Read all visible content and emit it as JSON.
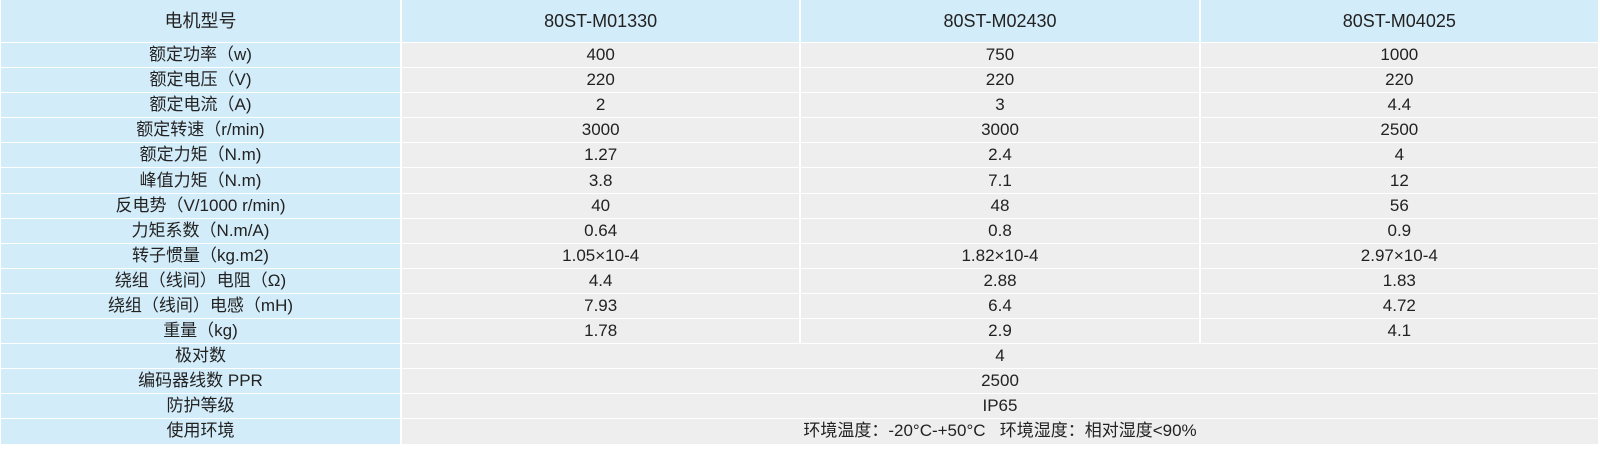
{
  "colors": {
    "label_bg": "#d3ecf9",
    "cell_bg": "#eeeeee",
    "text": "#222222"
  },
  "header": {
    "label": "电机型号",
    "models": [
      "80ST-M01330",
      "80ST-M02430",
      "80ST-M04025"
    ]
  },
  "rows": [
    {
      "label": "额定功率（w)",
      "values": [
        "400",
        "750",
        "1000"
      ]
    },
    {
      "label": "额定电压（V)",
      "values": [
        "220",
        "220",
        "220"
      ]
    },
    {
      "label": "额定电流（A)",
      "values": [
        "2",
        "3",
        "4.4"
      ]
    },
    {
      "label": "额定转速（r/min)",
      "values": [
        "3000",
        "3000",
        "2500"
      ]
    },
    {
      "label": "额定力矩（N.m)",
      "values": [
        "1.27",
        "2.4",
        "4"
      ]
    },
    {
      "label": "峰值力矩（N.m)",
      "values": [
        "3.8",
        "7.1",
        "12"
      ]
    },
    {
      "label": "反电势（V/1000 r/min)",
      "values": [
        "40",
        "48",
        "56"
      ]
    },
    {
      "label": "力矩系数（N.m/A)",
      "values": [
        "0.64",
        "0.8",
        "0.9"
      ]
    },
    {
      "label": "转子惯量（kg.m2)",
      "values": [
        "1.05×10-4",
        "1.82×10-4",
        "2.97×10-4"
      ]
    },
    {
      "label": "绕组（线间）电阻（Ω)",
      "values": [
        "4.4",
        "2.88",
        "1.83"
      ]
    },
    {
      "label": "绕组（线间）电感（mH)",
      "values": [
        "7.93",
        "6.4",
        "4.72"
      ]
    },
    {
      "label": "重量（kg)",
      "values": [
        "1.78",
        "2.9",
        "4.1"
      ]
    }
  ],
  "merged_rows": [
    {
      "label": "极对数",
      "value": "4"
    },
    {
      "label": "编码器线数 PPR",
      "value": "2500"
    },
    {
      "label": "防护等级",
      "value": "IP65"
    },
    {
      "label": "使用环境",
      "value": "环境温度：-20°C-+50°C   环境湿度：相对湿度<90%"
    }
  ]
}
